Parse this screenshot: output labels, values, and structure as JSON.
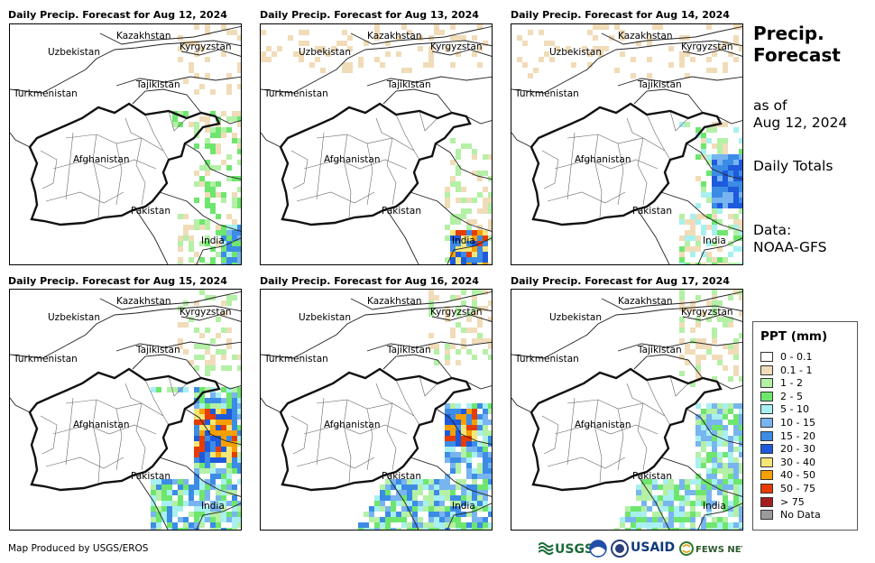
{
  "panels": [
    {
      "title": "Daily Precip. Forecast for Aug 12, 2024",
      "day": 0
    },
    {
      "title": "Daily Precip. Forecast for Aug 13, 2024",
      "day": 1
    },
    {
      "title": "Daily Precip. Forecast for Aug 14, 2024",
      "day": 2
    },
    {
      "title": "Daily Precip. Forecast for Aug 15, 2024",
      "day": 3
    },
    {
      "title": "Daily Precip. Forecast for Aug 16, 2024",
      "day": 4
    },
    {
      "title": "Daily Precip. Forecast for Aug 17, 2024",
      "day": 5
    }
  ],
  "map_labels": {
    "kazakhstan": "Kazakhstan",
    "kyrgyzstan": "Kyrgyzstan",
    "uzbekistan": "Uzbekistan",
    "tajikistan": "Tajikistan",
    "turkmenistan": "Turkmenistan",
    "afghanistan": "Afghanistan",
    "pakistan": "Pakistan",
    "india": "India"
  },
  "side": {
    "title": "Precip. Forecast",
    "as_of_label": "as of",
    "as_of_date": "Aug 12, 2024",
    "totals": "Daily Totals",
    "data_label": "Data:",
    "data_source": "NOAA-GFS"
  },
  "legend": {
    "title": "PPT (mm)",
    "items": [
      {
        "label": "0 - 0.1",
        "color": "#ffffff"
      },
      {
        "label": "0.1 - 1",
        "color": "#f0dcb8"
      },
      {
        "label": "1 - 2",
        "color": "#b4f0a6"
      },
      {
        "label": "2 - 5",
        "color": "#6ee66e"
      },
      {
        "label": "5 - 10",
        "color": "#a8f0f0"
      },
      {
        "label": "10 - 15",
        "color": "#78b4f0"
      },
      {
        "label": "15 - 20",
        "color": "#3c8ce6"
      },
      {
        "label": "20 - 30",
        "color": "#1e5adc"
      },
      {
        "label": "30 - 40",
        "color": "#f5e678"
      },
      {
        "label": "40 - 50",
        "color": "#f5a000"
      },
      {
        "label": "50 - 75",
        "color": "#e63c00"
      },
      {
        "label": "> 75",
        "color": "#a51e1e"
      },
      {
        "label": "No Data",
        "color": "#9b9b9b"
      }
    ]
  },
  "footer": {
    "credit": "Map Produced by USGS/EROS"
  },
  "logos": {
    "usgs": "USGS",
    "usaid": "USAID",
    "fewsnet": "FEWS NET"
  }
}
